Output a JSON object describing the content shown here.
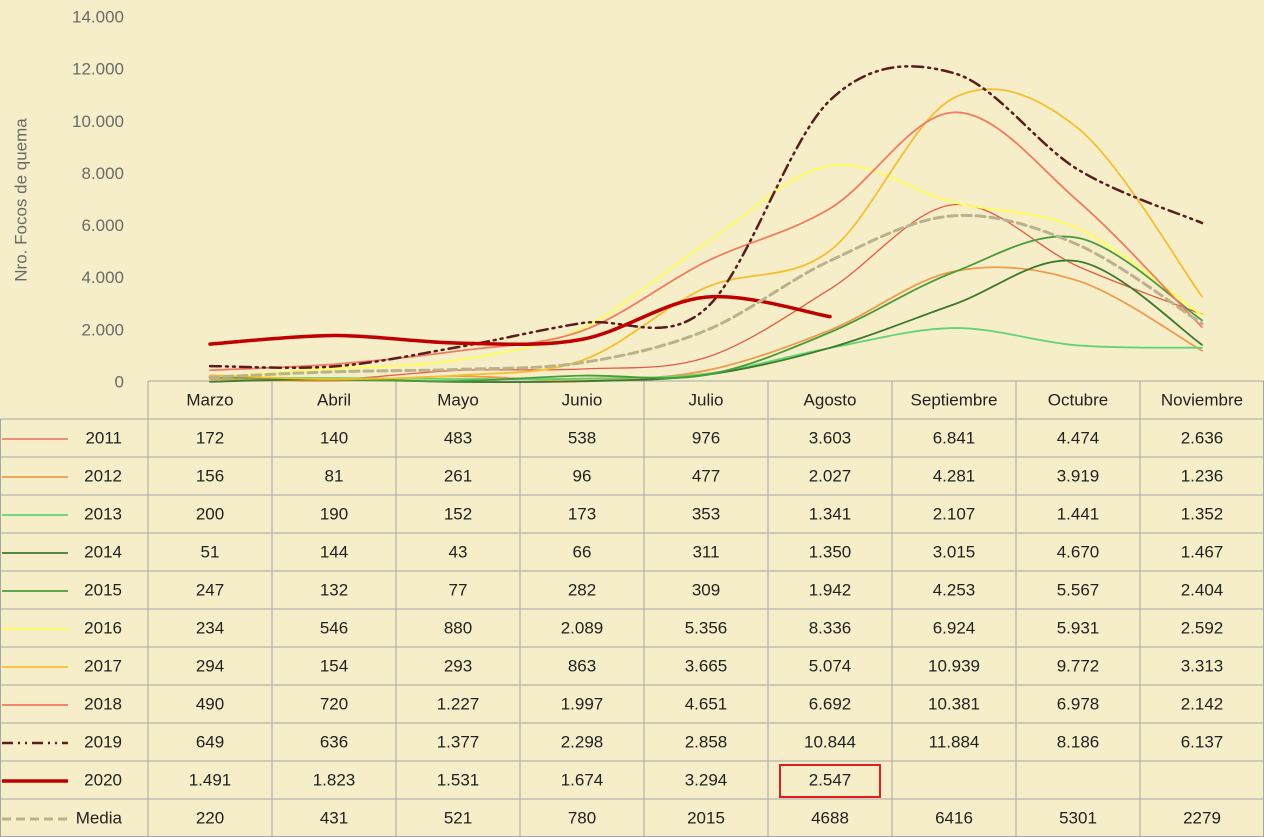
{
  "chart_data": {
    "type": "line",
    "y_label": "Nro. Focos de quema",
    "categories": [
      "Marzo",
      "Abril",
      "Mayo",
      "Junio",
      "Julio",
      "Agosto",
      "Septiembre",
      "Octubre",
      "Noviembre"
    ],
    "ylim": [
      0,
      14000
    ],
    "yticks": [
      0,
      {
        "value": 2000,
        "label": "2.000"
      },
      {
        "value": 4000,
        "label": "4.000"
      },
      {
        "value": 6000,
        "label": "6.000"
      },
      {
        "value": 8000,
        "label": "8.000"
      },
      {
        "value": 10000,
        "label": "10.000"
      },
      {
        "value": 12000,
        "label": "12.000"
      },
      {
        "value": 14000,
        "label": "14.000"
      }
    ],
    "grid": false,
    "series": [
      {
        "name": "2011",
        "color": "#e65a46",
        "linewidth": 1.3,
        "line_style": "solid",
        "values": [
          172,
          140,
          483,
          538,
          976,
          3603,
          6841,
          4474,
          2636
        ],
        "value_labels": [
          "172",
          "140",
          "483",
          "538",
          "976",
          "3.603",
          "6.841",
          "4.474",
          "2.636"
        ]
      },
      {
        "name": "2012",
        "color": "#ee9b4c",
        "linewidth": 1.8,
        "line_style": "solid",
        "values": [
          156,
          81,
          261,
          96,
          477,
          2027,
          4281,
          3919,
          1236
        ],
        "value_labels": [
          "156",
          "81",
          "261",
          "96",
          "477",
          "2.027",
          "4.281",
          "3.919",
          "1.236"
        ]
      },
      {
        "name": "2013",
        "color": "#5fd474",
        "linewidth": 1.8,
        "line_style": "solid",
        "values": [
          200,
          190,
          152,
          173,
          353,
          1341,
          2107,
          1441,
          1352
        ],
        "value_labels": [
          "200",
          "190",
          "152",
          "173",
          "353",
          "1.341",
          "2.107",
          "1.441",
          "1.352"
        ]
      },
      {
        "name": "2014",
        "color": "#3d7a2e",
        "linewidth": 1.8,
        "line_style": "solid",
        "values": [
          51,
          144,
          43,
          66,
          311,
          1350,
          3015,
          4670,
          1467
        ],
        "value_labels": [
          "51",
          "144",
          "43",
          "66",
          "311",
          "1.350",
          "3.015",
          "4.670",
          "1.467"
        ]
      },
      {
        "name": "2015",
        "color": "#4c9c3a",
        "linewidth": 1.8,
        "line_style": "solid",
        "values": [
          247,
          132,
          77,
          282,
          309,
          1942,
          4253,
          5567,
          2404
        ],
        "value_labels": [
          "247",
          "132",
          "77",
          "282",
          "309",
          "1.942",
          "4.253",
          "5.567",
          "2.404"
        ]
      },
      {
        "name": "2016",
        "color": "#ffff55",
        "linewidth": 1.8,
        "line_style": "solid",
        "values": [
          234,
          546,
          880,
          2089,
          5356,
          8336,
          6924,
          5931,
          2592
        ],
        "value_labels": [
          "234",
          "546",
          "880",
          "2.089",
          "5.356",
          "8.336",
          "6.924",
          "5.931",
          "2.592"
        ]
      },
      {
        "name": "2017",
        "color": "#f6bf2c",
        "linewidth": 1.8,
        "line_style": "solid",
        "values": [
          294,
          154,
          293,
          863,
          3665,
          5074,
          10939,
          9772,
          3313
        ],
        "value_labels": [
          "294",
          "154",
          "293",
          "863",
          "3.665",
          "5.074",
          "10.939",
          "9.772",
          "3.313"
        ]
      },
      {
        "name": "2018",
        "color": "#f47a62",
        "linewidth": 1.8,
        "line_style": "solid",
        "values": [
          490,
          720,
          1227,
          1997,
          4651,
          6692,
          10381,
          6978,
          2142
        ],
        "value_labels": [
          "490",
          "720",
          "1.227",
          "1.997",
          "4.651",
          "6.692",
          "10.381",
          "6.978",
          "2.142"
        ]
      },
      {
        "name": "2019",
        "color": "#5a1c1c",
        "linewidth": 2.5,
        "line_style": "dash-dot-dot",
        "values": [
          649,
          636,
          1377,
          2298,
          2858,
          10844,
          11884,
          8186,
          6137
        ],
        "value_labels": [
          "649",
          "636",
          "1.377",
          "2.298",
          "2.858",
          "10.844",
          "11.884",
          "8.186",
          "6.137"
        ]
      },
      {
        "name": "2020",
        "color": "#c00000",
        "linewidth": 3.5,
        "line_style": "solid",
        "values": [
          1491,
          1823,
          1531,
          1674,
          3294,
          2547,
          null,
          null,
          null
        ],
        "value_labels": [
          "1.491",
          "1.823",
          "1.531",
          "1.674",
          "3.294",
          "2.547",
          null,
          null,
          null
        ]
      },
      {
        "name": "Media",
        "color": "#b9b28c",
        "linewidth": 3,
        "line_style": "dashed",
        "values": [
          220,
          431,
          521,
          780,
          2015,
          4688,
          6416,
          5301,
          2279
        ]
      }
    ]
  }
}
